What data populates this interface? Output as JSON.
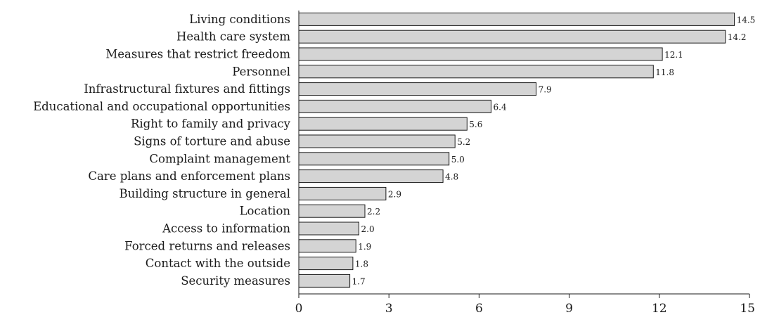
{
  "chart_data": {
    "type": "bar",
    "orientation": "horizontal",
    "categories": [
      "Living conditions",
      "Health care system",
      "Measures that restrict freedom",
      "Personnel",
      "Infrastructural fixtures and fittings",
      "Educational and occupational opportunities",
      "Right to family and privacy",
      "Signs of torture and abuse",
      "Complaint management",
      "Care plans and enforcement plans",
      "Building structure in general",
      "Location",
      "Access to information",
      "Forced returns and releases",
      "Contact with the outside",
      "Security measures"
    ],
    "values": [
      14.5,
      14.2,
      12.1,
      11.8,
      7.9,
      6.4,
      5.6,
      5.2,
      5.0,
      4.8,
      2.9,
      2.2,
      2.0,
      1.9,
      1.8,
      1.7
    ],
    "value_labels": [
      "14.5",
      "14.2",
      "12.1",
      "11.8",
      "7.9",
      "6.4",
      "5.6",
      "5.2",
      "5.0",
      "4.8",
      "2.9",
      "2.2",
      "2.0",
      "1.9",
      "1.8",
      "1.7"
    ],
    "x_ticks": [
      "0",
      "3",
      "6",
      "9",
      "12",
      "15"
    ],
    "xlim": [
      0,
      15
    ],
    "title": "",
    "xlabel": "",
    "ylabel": "",
    "grid": false,
    "colors": {
      "bar_fill": "#d4d4d4",
      "bar_stroke": "#1a1a1a"
    }
  }
}
